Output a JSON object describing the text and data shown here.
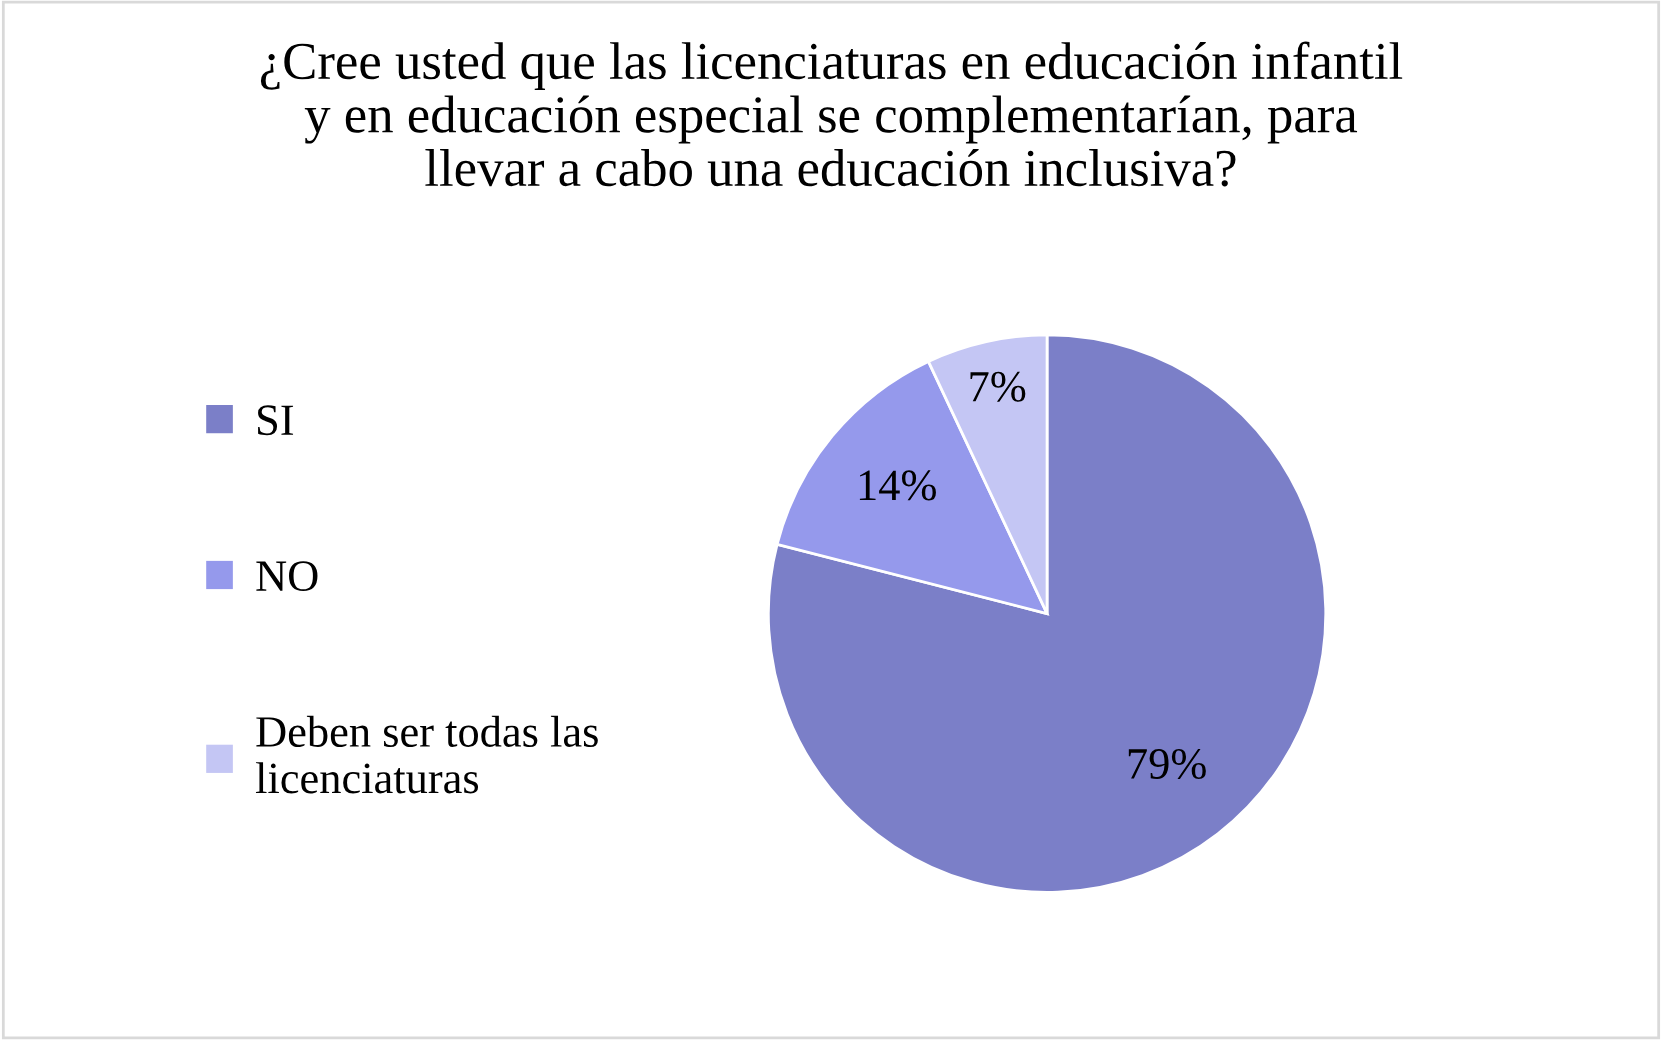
{
  "chart_data": {
    "type": "pie",
    "title": "¿Cree usted que las licenciaturas en educación infantil\ny en educación especial se complementarían, para\nllevar a cabo una educación inclusiva?",
    "categories": [
      "SI",
      "NO",
      "Deben ser todas las\nlicenciaturas"
    ],
    "values": [
      79,
      14,
      7
    ],
    "colors": [
      "#7b7fc8",
      "#9599ec",
      "#c4c6f4"
    ],
    "value_labels": [
      "79%",
      "14%",
      "7%"
    ],
    "legend": "left"
  }
}
